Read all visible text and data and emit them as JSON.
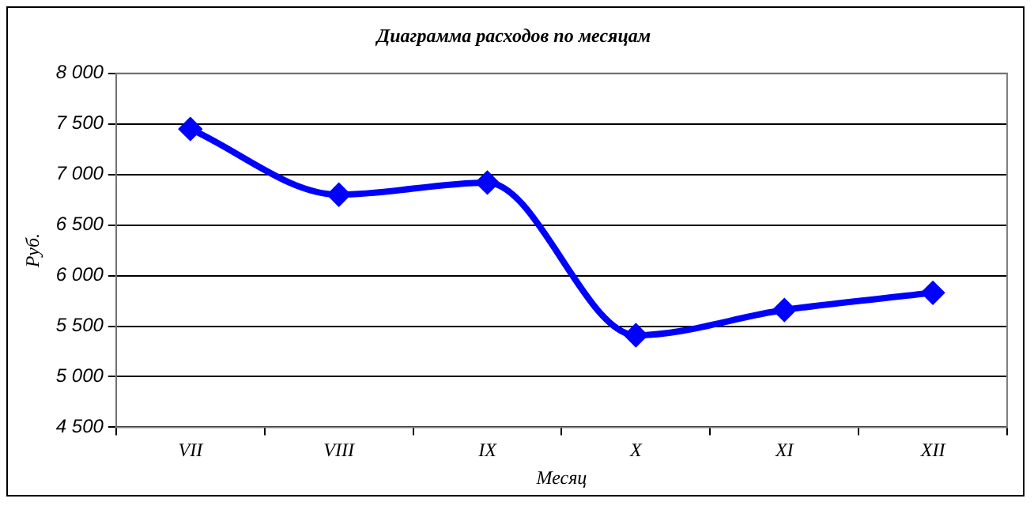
{
  "chart_data": {
    "type": "line",
    "title": "Диаграмма расходов по месяцам",
    "xlabel": "Месяц",
    "ylabel": "Руб.",
    "categories": [
      "VII",
      "VIII",
      "IX",
      "X",
      "XI",
      "XII"
    ],
    "series": [
      {
        "color": "#0000ff",
        "values": [
          7450,
          6800,
          6920,
          5410,
          5660,
          5830
        ]
      }
    ],
    "ylim": [
      4500,
      8000
    ],
    "yticks": [
      {
        "value": 4500,
        "label": "4 500"
      },
      {
        "value": 5000,
        "label": "5 000"
      },
      {
        "value": 5500,
        "label": "5 500"
      },
      {
        "value": 6000,
        "label": "6 000"
      },
      {
        "value": 6500,
        "label": "6 500"
      },
      {
        "value": 7000,
        "label": "7 000"
      },
      {
        "value": 7500,
        "label": "7 500"
      },
      {
        "value": 8000,
        "label": "8 000"
      }
    ],
    "grid": "y",
    "legend": false,
    "marker": "diamond",
    "line_style": "solid"
  }
}
